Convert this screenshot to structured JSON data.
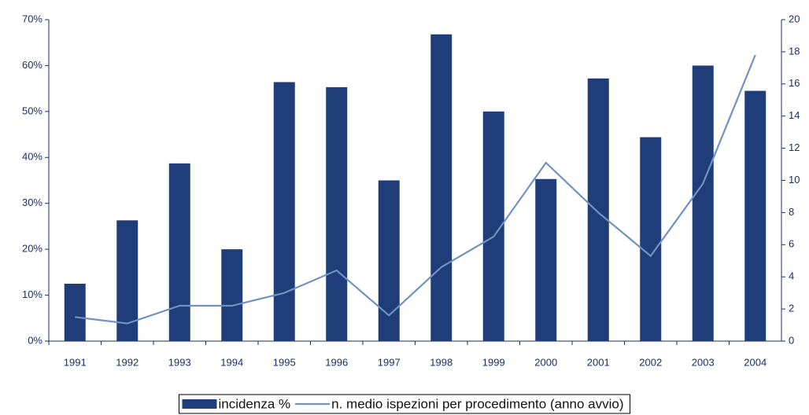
{
  "chart_data": {
    "type": "bar",
    "categories": [
      "1991",
      "1992",
      "1993",
      "1994",
      "1995",
      "1996",
      "1997",
      "1998",
      "1999",
      "2000",
      "2001",
      "2002",
      "2003",
      "2004"
    ],
    "series": [
      {
        "name": "incidenza %",
        "type": "bar",
        "color": "#1f3d78",
        "values": [
          12.5,
          26.3,
          38.7,
          20,
          56.4,
          55.3,
          35,
          66.8,
          50,
          35.3,
          57.2,
          44.4,
          60,
          54.5
        ]
      },
      {
        "name": "n. medio ispezioni per procedimento (anno avvio)",
        "type": "line",
        "color": "#7092c2",
        "axis": "y2",
        "values": [
          1.5,
          1.1,
          2.2,
          2.2,
          3.0,
          4.4,
          1.6,
          4.6,
          6.5,
          11.1,
          8.0,
          5.3,
          9.8,
          17.8
        ]
      }
    ],
    "ylim": [
      0,
      70
    ],
    "yticks": [
      {
        "value": 0,
        "label": "0%"
      },
      {
        "value": 10,
        "label": "10%"
      },
      {
        "value": 20,
        "label": "20%"
      },
      {
        "value": 30,
        "label": "30%"
      },
      {
        "value": 40,
        "label": "40%"
      },
      {
        "value": 50,
        "label": "50%"
      },
      {
        "value": 60,
        "label": "60%"
      },
      {
        "value": 70,
        "label": "70%"
      }
    ],
    "y2lim": [
      0,
      20
    ],
    "y2ticks": [
      0,
      2,
      4,
      6,
      8,
      10,
      12,
      14,
      16,
      18,
      20
    ],
    "grid": false,
    "legend": "bottom"
  }
}
